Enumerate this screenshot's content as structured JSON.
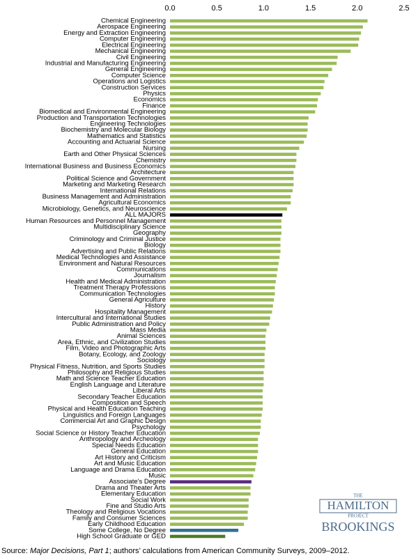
{
  "chart_data": {
    "type": "bar",
    "orientation": "horizontal",
    "categories": [
      "Chemical Engineering",
      "Aerospace Engineering",
      "Energy and Extraction Engineering",
      "Computer Engineering",
      "Electrical Engineering",
      "Mechanical Engineering",
      "Civil Engineering",
      "Industrial and Manufacturing Engineering",
      "General Engineering",
      "Computer Science",
      "Operations and Logistics",
      "Construction Services",
      "Physics",
      "Economics",
      "Finance",
      "Biomedical and Environmental Engineering",
      "Production and Transportation Technologies",
      "Engineering Technologies",
      "Biochemistry and Molecular Biology",
      "Mathematics and Statistics",
      "Accounting and Actuarial Science",
      "Nursing",
      "Earth and Other Physical Sciences",
      "Chemistry",
      "International Business and Business Economics",
      "Architecture",
      "Political Science and Government",
      "Marketing and Marketing Research",
      "International Relations",
      "Business Management and Administration",
      "Agricultural Economics",
      "Microbiology, Genetics, and Neuroscience",
      "ALL MAJORS",
      "Human Resources and Personnel Management",
      "Multidisciplinary Science",
      "Geography",
      "Criminology and Criminal Justice",
      "Biology",
      "Advertising and Public Relations",
      "Medical Technologies and Assistance",
      "Environment and Natural Resources",
      "Communications",
      "Journalism",
      "Health and Medical Administration",
      "Treatment Therapy Professions",
      "Communication Technologies",
      "General Agriculture",
      "History",
      "Hospitality Management",
      "Intercultural and International Studies",
      "Public Administration and Policy",
      "Mass Media",
      "Animal Sciences",
      "Area, Ethnic, and Civilization Studies",
      "Film, Video and Photographic Arts",
      "Botany, Ecology, and Zoology",
      "Sociology",
      "Physical Fitness, Nutrition, and Sports Studies",
      "Philosophy and Religious Studies",
      "Math and Science Teacher Education",
      "English Language and Literature",
      "Liberal Arts",
      "Secondary Teacher Education",
      "Composition and Speech",
      "Physical and Health Education Teaching",
      "Linguistics and Foreign Languages",
      "Commercial Art and Graphic Design",
      "Psychology",
      "Social Science or History Teacher Education",
      "Anthropology and Archeology",
      "Special Needs Education",
      "General Education",
      "Art History and Criticism",
      "Art and Music Education",
      "Language and Drama Education",
      "Music",
      "Associate's Degree",
      "Drama and Theater Arts",
      "Elementary Education",
      "Social Work",
      "Fine and Studio Arts",
      "Theology and Religious Vocations",
      "Family and Consumer Sciences",
      "Early Childhood Education",
      "Some College, No Degree",
      "High School Graduate or GED"
    ],
    "values": [
      2.11,
      2.06,
      2.04,
      2.02,
      2.01,
      1.93,
      1.79,
      1.78,
      1.73,
      1.69,
      1.65,
      1.64,
      1.61,
      1.58,
      1.57,
      1.55,
      1.48,
      1.47,
      1.47,
      1.46,
      1.43,
      1.38,
      1.35,
      1.35,
      1.34,
      1.32,
      1.32,
      1.32,
      1.31,
      1.29,
      1.29,
      1.25,
      1.2,
      1.19,
      1.19,
      1.19,
      1.18,
      1.18,
      1.18,
      1.17,
      1.16,
      1.15,
      1.14,
      1.13,
      1.12,
      1.12,
      1.11,
      1.1,
      1.09,
      1.07,
      1.06,
      1.03,
      1.02,
      1.02,
      1.02,
      1.01,
      1.01,
      1.01,
      1.0,
      1.0,
      1.0,
      0.99,
      0.99,
      0.99,
      0.99,
      0.98,
      0.97,
      0.97,
      0.96,
      0.94,
      0.94,
      0.94,
      0.93,
      0.92,
      0.91,
      0.89,
      0.87,
      0.86,
      0.86,
      0.84,
      0.84,
      0.83,
      0.83,
      0.79,
      0.73,
      0.59
    ],
    "color": "#9bbb59",
    "highlight_colors": {
      "ALL MAJORS": "#000000",
      "Associate's Degree": "#5b2c7f",
      "Some College, No Degree": "#31708f",
      "High School Graduate or GED": "#4f7a28"
    },
    "xlim": [
      0,
      2.5
    ],
    "xticks": [
      {
        "value": 0,
        "label": "0.0"
      },
      0.5,
      {
        "value": 1,
        "label": "1.0"
      },
      1.5,
      {
        "value": 2,
        "label": "2.0"
      },
      2.5
    ],
    "grid": false
  },
  "source": {
    "prefix": "Source: ",
    "title": "Major Decisions, Part 1",
    "rest": "; authors’ calculations from American Community Surveys, 2009–2012."
  },
  "logo": {
    "the": "THE",
    "hamilton": "HAMILTON",
    "project": "PROJECT",
    "brookings": "BROOKINGS"
  }
}
